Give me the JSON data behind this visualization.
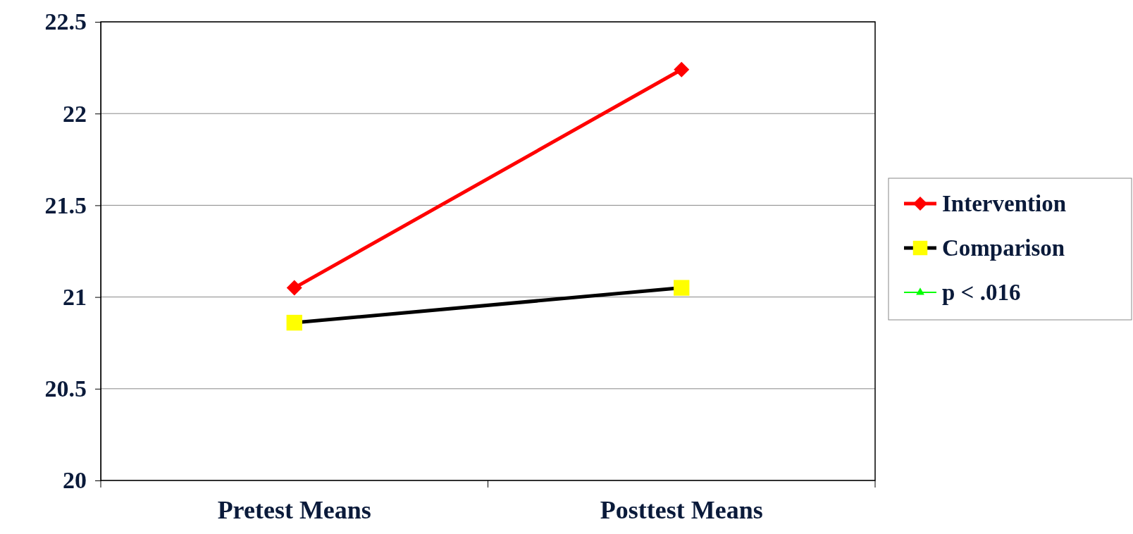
{
  "chart_data": {
    "type": "line",
    "categories": [
      "Pretest Means",
      "Posttest Means"
    ],
    "series": [
      {
        "name": "Intervention",
        "color": "#ff0000",
        "values": [
          21.05,
          22.24
        ],
        "marker": "diamond"
      },
      {
        "name": "Comparison",
        "color": "#000000",
        "values": [
          20.86,
          21.05
        ],
        "marker": "square",
        "colors": [
          "#ffff00",
          "#ffff00"
        ]
      },
      {
        "name": "p < .016",
        "color": "#00ff00",
        "values": [
          null,
          null
        ],
        "marker": "triangle"
      }
    ],
    "ylim": [
      20,
      22.5
    ],
    "yticks": [
      20,
      20.5,
      21,
      21.5,
      22,
      22.5
    ],
    "grid": "y",
    "legend": "right"
  }
}
